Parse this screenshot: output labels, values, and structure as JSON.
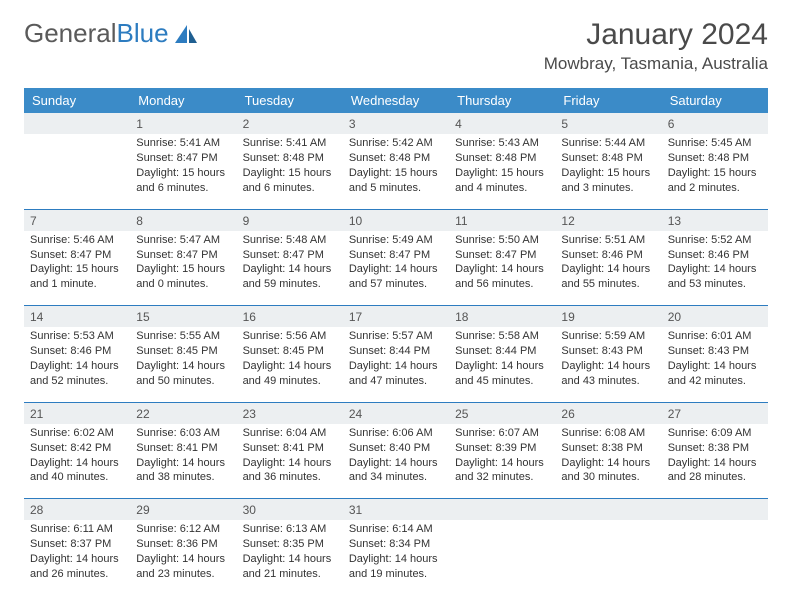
{
  "logo": {
    "text1": "General",
    "text2": "Blue"
  },
  "title": "January 2024",
  "location": "Mowbray, Tasmania, Australia",
  "colors": {
    "header_bg": "#3b8bc8",
    "daynum_bg": "#eceff1",
    "separator": "#2d7cc0",
    "logo_blue": "#2d7cc0"
  },
  "weekdays": [
    "Sunday",
    "Monday",
    "Tuesday",
    "Wednesday",
    "Thursday",
    "Friday",
    "Saturday"
  ],
  "weeks": [
    [
      {
        "n": "",
        "sunrise": "",
        "sunset": "",
        "daylight": ""
      },
      {
        "n": "1",
        "sunrise": "Sunrise: 5:41 AM",
        "sunset": "Sunset: 8:47 PM",
        "daylight": "Daylight: 15 hours and 6 minutes."
      },
      {
        "n": "2",
        "sunrise": "Sunrise: 5:41 AM",
        "sunset": "Sunset: 8:48 PM",
        "daylight": "Daylight: 15 hours and 6 minutes."
      },
      {
        "n": "3",
        "sunrise": "Sunrise: 5:42 AM",
        "sunset": "Sunset: 8:48 PM",
        "daylight": "Daylight: 15 hours and 5 minutes."
      },
      {
        "n": "4",
        "sunrise": "Sunrise: 5:43 AM",
        "sunset": "Sunset: 8:48 PM",
        "daylight": "Daylight: 15 hours and 4 minutes."
      },
      {
        "n": "5",
        "sunrise": "Sunrise: 5:44 AM",
        "sunset": "Sunset: 8:48 PM",
        "daylight": "Daylight: 15 hours and 3 minutes."
      },
      {
        "n": "6",
        "sunrise": "Sunrise: 5:45 AM",
        "sunset": "Sunset: 8:48 PM",
        "daylight": "Daylight: 15 hours and 2 minutes."
      }
    ],
    [
      {
        "n": "7",
        "sunrise": "Sunrise: 5:46 AM",
        "sunset": "Sunset: 8:47 PM",
        "daylight": "Daylight: 15 hours and 1 minute."
      },
      {
        "n": "8",
        "sunrise": "Sunrise: 5:47 AM",
        "sunset": "Sunset: 8:47 PM",
        "daylight": "Daylight: 15 hours and 0 minutes."
      },
      {
        "n": "9",
        "sunrise": "Sunrise: 5:48 AM",
        "sunset": "Sunset: 8:47 PM",
        "daylight": "Daylight: 14 hours and 59 minutes."
      },
      {
        "n": "10",
        "sunrise": "Sunrise: 5:49 AM",
        "sunset": "Sunset: 8:47 PM",
        "daylight": "Daylight: 14 hours and 57 minutes."
      },
      {
        "n": "11",
        "sunrise": "Sunrise: 5:50 AM",
        "sunset": "Sunset: 8:47 PM",
        "daylight": "Daylight: 14 hours and 56 minutes."
      },
      {
        "n": "12",
        "sunrise": "Sunrise: 5:51 AM",
        "sunset": "Sunset: 8:46 PM",
        "daylight": "Daylight: 14 hours and 55 minutes."
      },
      {
        "n": "13",
        "sunrise": "Sunrise: 5:52 AM",
        "sunset": "Sunset: 8:46 PM",
        "daylight": "Daylight: 14 hours and 53 minutes."
      }
    ],
    [
      {
        "n": "14",
        "sunrise": "Sunrise: 5:53 AM",
        "sunset": "Sunset: 8:46 PM",
        "daylight": "Daylight: 14 hours and 52 minutes."
      },
      {
        "n": "15",
        "sunrise": "Sunrise: 5:55 AM",
        "sunset": "Sunset: 8:45 PM",
        "daylight": "Daylight: 14 hours and 50 minutes."
      },
      {
        "n": "16",
        "sunrise": "Sunrise: 5:56 AM",
        "sunset": "Sunset: 8:45 PM",
        "daylight": "Daylight: 14 hours and 49 minutes."
      },
      {
        "n": "17",
        "sunrise": "Sunrise: 5:57 AM",
        "sunset": "Sunset: 8:44 PM",
        "daylight": "Daylight: 14 hours and 47 minutes."
      },
      {
        "n": "18",
        "sunrise": "Sunrise: 5:58 AM",
        "sunset": "Sunset: 8:44 PM",
        "daylight": "Daylight: 14 hours and 45 minutes."
      },
      {
        "n": "19",
        "sunrise": "Sunrise: 5:59 AM",
        "sunset": "Sunset: 8:43 PM",
        "daylight": "Daylight: 14 hours and 43 minutes."
      },
      {
        "n": "20",
        "sunrise": "Sunrise: 6:01 AM",
        "sunset": "Sunset: 8:43 PM",
        "daylight": "Daylight: 14 hours and 42 minutes."
      }
    ],
    [
      {
        "n": "21",
        "sunrise": "Sunrise: 6:02 AM",
        "sunset": "Sunset: 8:42 PM",
        "daylight": "Daylight: 14 hours and 40 minutes."
      },
      {
        "n": "22",
        "sunrise": "Sunrise: 6:03 AM",
        "sunset": "Sunset: 8:41 PM",
        "daylight": "Daylight: 14 hours and 38 minutes."
      },
      {
        "n": "23",
        "sunrise": "Sunrise: 6:04 AM",
        "sunset": "Sunset: 8:41 PM",
        "daylight": "Daylight: 14 hours and 36 minutes."
      },
      {
        "n": "24",
        "sunrise": "Sunrise: 6:06 AM",
        "sunset": "Sunset: 8:40 PM",
        "daylight": "Daylight: 14 hours and 34 minutes."
      },
      {
        "n": "25",
        "sunrise": "Sunrise: 6:07 AM",
        "sunset": "Sunset: 8:39 PM",
        "daylight": "Daylight: 14 hours and 32 minutes."
      },
      {
        "n": "26",
        "sunrise": "Sunrise: 6:08 AM",
        "sunset": "Sunset: 8:38 PM",
        "daylight": "Daylight: 14 hours and 30 minutes."
      },
      {
        "n": "27",
        "sunrise": "Sunrise: 6:09 AM",
        "sunset": "Sunset: 8:38 PM",
        "daylight": "Daylight: 14 hours and 28 minutes."
      }
    ],
    [
      {
        "n": "28",
        "sunrise": "Sunrise: 6:11 AM",
        "sunset": "Sunset: 8:37 PM",
        "daylight": "Daylight: 14 hours and 26 minutes."
      },
      {
        "n": "29",
        "sunrise": "Sunrise: 6:12 AM",
        "sunset": "Sunset: 8:36 PM",
        "daylight": "Daylight: 14 hours and 23 minutes."
      },
      {
        "n": "30",
        "sunrise": "Sunrise: 6:13 AM",
        "sunset": "Sunset: 8:35 PM",
        "daylight": "Daylight: 14 hours and 21 minutes."
      },
      {
        "n": "31",
        "sunrise": "Sunrise: 6:14 AM",
        "sunset": "Sunset: 8:34 PM",
        "daylight": "Daylight: 14 hours and 19 minutes."
      },
      {
        "n": "",
        "sunrise": "",
        "sunset": "",
        "daylight": ""
      },
      {
        "n": "",
        "sunrise": "",
        "sunset": "",
        "daylight": ""
      },
      {
        "n": "",
        "sunrise": "",
        "sunset": "",
        "daylight": ""
      }
    ]
  ]
}
